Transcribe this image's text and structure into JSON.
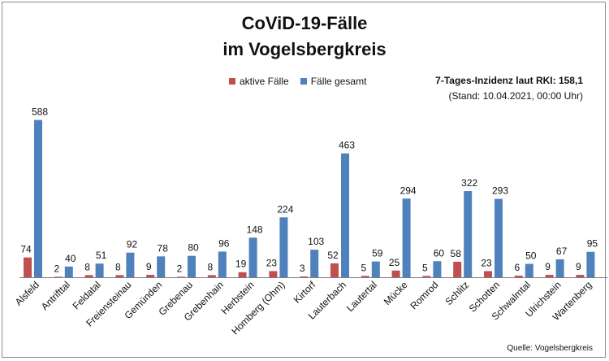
{
  "title_line1": "CoViD-19-Fälle",
  "title_line2": "im Vogelsbergkreis",
  "incidence_text": "7-Tages-Inzidenz laut RKI: 158,1",
  "stand_text": "(Stand: 10.04.2021, 00:00 Uhr)",
  "source_text": "Quelle: Vogelsbergkreis",
  "colors": {
    "active": "#c0504d",
    "total": "#4f81bd"
  },
  "chart_data": {
    "type": "bar",
    "title": "CoViD-19-Fälle im Vogelsbergkreis",
    "categories": [
      "Alsfeld",
      "Antrifttal",
      "Feldatal",
      "Freiensteinau",
      "Gemünden",
      "Grebenau",
      "Grebenhain",
      "Herbstein",
      "Homberg (Ohm)",
      "Kirtorf",
      "Lauterbach",
      "Lautertal",
      "Mücke",
      "Romrod",
      "Schlitz",
      "Schotten",
      "Schwalmtal",
      "Ulrichstein",
      "Wartenberg"
    ],
    "series": [
      {
        "name": "aktive Fälle",
        "values": [
          74,
          2,
          8,
          8,
          9,
          2,
          8,
          19,
          23,
          3,
          52,
          5,
          25,
          5,
          58,
          23,
          6,
          9,
          9
        ]
      },
      {
        "name": "Fälle gesamt",
        "values": [
          588,
          40,
          51,
          92,
          78,
          80,
          96,
          148,
          224,
          103,
          463,
          59,
          294,
          60,
          322,
          293,
          50,
          67,
          95
        ]
      }
    ],
    "ylim": [
      0,
      620
    ],
    "legend_position": "top-center",
    "grid": false
  }
}
